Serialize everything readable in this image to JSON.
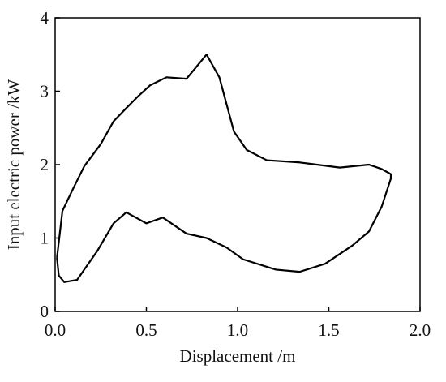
{
  "chart_data": {
    "type": "line",
    "xlabel": "Displacement /m",
    "ylabel": "Input electric power /kW",
    "x": [
      0.01,
      0.04,
      0.1,
      0.16,
      0.25,
      0.32,
      0.39,
      0.45,
      0.52,
      0.61,
      0.72,
      0.83,
      0.9,
      0.98,
      1.05,
      1.16,
      1.34,
      1.56,
      1.72,
      1.79,
      1.84,
      1.84,
      1.79,
      1.72,
      1.63,
      1.48,
      1.34,
      1.21,
      1.03,
      0.94,
      0.83,
      0.72,
      0.59,
      0.5,
      0.39,
      0.32,
      0.23,
      0.12,
      0.05,
      0.02,
      0.01
    ],
    "series": [
      {
        "color": "#000000",
        "values": [
          0.73,
          1.37,
          1.68,
          1.98,
          2.28,
          2.59,
          2.77,
          2.92,
          3.08,
          3.19,
          3.17,
          3.5,
          3.19,
          2.45,
          2.2,
          2.06,
          2.03,
          1.96,
          2.0,
          1.94,
          1.87,
          1.81,
          1.43,
          1.09,
          0.9,
          0.65,
          0.54,
          0.57,
          0.71,
          0.87,
          1.0,
          1.06,
          1.28,
          1.2,
          1.35,
          1.2,
          0.82,
          0.43,
          0.4,
          0.49,
          0.73
        ]
      }
    ],
    "xlim": [
      0,
      2
    ],
    "ylim": [
      0,
      4
    ],
    "xticks": [
      {
        "value": 0,
        "label": "0.0"
      },
      0.5,
      {
        "value": 1,
        "label": "1.0"
      },
      1.5,
      {
        "value": 2,
        "label": "2.0"
      }
    ],
    "yticks": [
      0,
      1,
      2,
      3,
      4
    ]
  }
}
